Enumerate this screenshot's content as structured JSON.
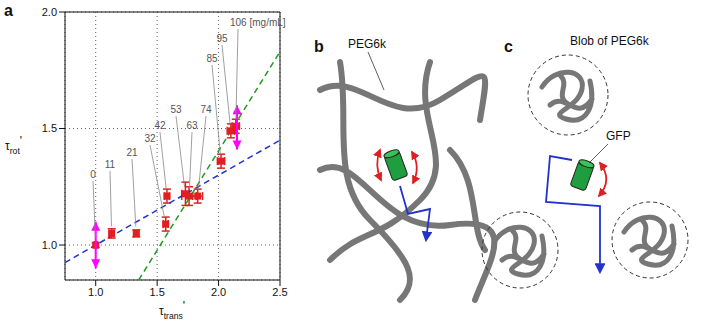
{
  "chart_data": {
    "type": "scatter",
    "panel_label": "a",
    "x_label": "τtrans'",
    "y_label": "τrot'",
    "xlim": [
      0.75,
      2.5
    ],
    "xticks": [
      {
        "value": 1,
        "label": "1.0"
      },
      {
        "value": 1.5,
        "label": "1.5"
      },
      {
        "value": 2,
        "label": "2.0"
      },
      {
        "value": 2.5,
        "label": "2.5"
      }
    ],
    "ylim": [
      0.85,
      2.0
    ],
    "yticks": [
      {
        "value": 1,
        "label": "1.0"
      },
      {
        "value": 1.5,
        "label": "1.5"
      },
      {
        "value": 2,
        "label": "2.0"
      }
    ],
    "grid": true,
    "color": "#e02020",
    "marker": "square",
    "x": [
      1.0,
      1.13,
      1.33,
      1.57,
      1.58,
      1.73,
      1.76,
      1.83,
      2.02,
      2.1,
      2.14
    ],
    "values": [
      1.0,
      1.05,
      1.05,
      1.09,
      1.21,
      1.22,
      1.21,
      1.21,
      1.36,
      1.49,
      1.51
    ],
    "x_err": [
      0.01,
      0.02,
      0.02,
      0.02,
      0.02,
      0.03,
      0.06,
      0.04,
      0.03,
      0.03,
      0.03
    ],
    "y_err": [
      0.01,
      0.02,
      0.015,
      0.03,
      0.03,
      0.05,
      0.04,
      0.03,
      0.03,
      0.03,
      0.03
    ],
    "point_labels": [
      "0",
      "11",
      "21",
      "32",
      "42",
      "53",
      "63",
      "74",
      "85",
      "95",
      "106 [mg/mL]"
    ],
    "lines": [
      {
        "color": "#2233cc",
        "line_style": "dashed",
        "x": [
          0.75,
          2.5
        ],
        "y": [
          0.925,
          1.45
        ]
      },
      {
        "color": "#229922",
        "line_style": "dashed",
        "x": [
          1.35,
          2.5
        ],
        "y": [
          0.85,
          1.83
        ]
      }
    ],
    "arrows": [
      {
        "color": "#ff00ff",
        "x": 1.0,
        "y": [
          0.9,
          1.1
        ]
      },
      {
        "color": "#ff00ff",
        "x": 2.15,
        "y": [
          1.41,
          1.6
        ]
      }
    ]
  },
  "diagrams": {
    "b": {
      "panel_label": "b",
      "polymer_label": "PEG6k"
    },
    "c": {
      "panel_label": "c",
      "blob_label": "Blob of PEG6k",
      "protein_label": "GFP"
    }
  }
}
